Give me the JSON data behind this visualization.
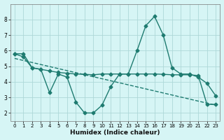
{
  "xlabel": "Humidex (Indice chaleur)",
  "bg_color": "#d6f5f5",
  "grid_color": "#aed8d8",
  "line_color": "#1e7b70",
  "xlim": [
    -0.5,
    23.5
  ],
  "ylim": [
    1.5,
    9.0
  ],
  "yticks": [
    2,
    3,
    4,
    5,
    6,
    7,
    8
  ],
  "xticks": [
    0,
    1,
    2,
    3,
    4,
    5,
    6,
    7,
    8,
    9,
    10,
    11,
    12,
    13,
    14,
    15,
    16,
    17,
    18,
    19,
    20,
    21,
    22,
    23
  ],
  "line1_x": [
    0,
    1,
    2,
    3,
    4,
    5,
    6,
    7,
    8,
    9,
    10,
    11,
    12,
    13,
    14,
    15,
    16,
    17,
    18,
    19,
    20,
    21,
    22,
    23
  ],
  "line1_y": [
    5.8,
    5.8,
    4.9,
    4.8,
    3.3,
    4.5,
    4.3,
    2.7,
    2.0,
    2.0,
    2.5,
    3.7,
    4.5,
    4.5,
    6.0,
    7.6,
    8.2,
    7.0,
    4.9,
    4.5,
    4.5,
    4.3,
    3.9,
    3.1
  ],
  "line2_x": [
    0,
    1,
    2,
    3,
    4,
    5,
    6,
    7,
    8,
    9,
    10,
    11,
    12,
    13,
    14,
    15,
    16,
    17,
    18,
    19,
    20,
    21,
    22,
    23
  ],
  "line2_y": [
    5.8,
    5.6,
    4.9,
    4.8,
    4.7,
    4.6,
    4.55,
    4.5,
    4.48,
    4.45,
    4.5,
    4.5,
    4.5,
    4.5,
    4.5,
    4.5,
    4.5,
    4.48,
    4.45,
    4.45,
    4.45,
    4.4,
    2.55,
    2.55
  ],
  "line3_x": [
    0,
    23
  ],
  "line3_y": [
    5.5,
    2.5
  ],
  "markersize": 2.5,
  "linewidth": 1.0
}
